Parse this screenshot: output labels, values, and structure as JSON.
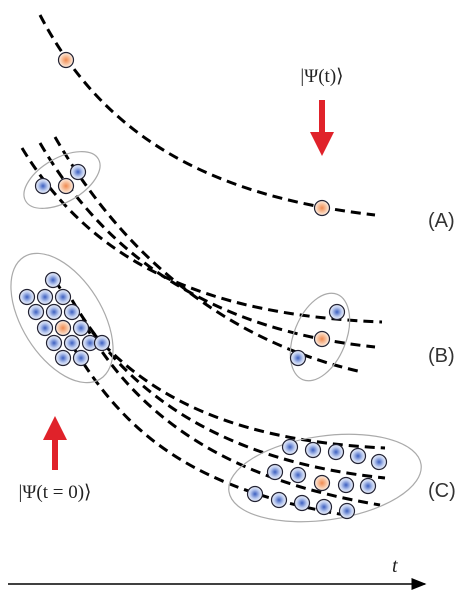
{
  "labels": {
    "psi_t": "|Ψ(t)⟩",
    "psi_0": "|Ψ(t = 0)⟩",
    "a": "(A)",
    "b": "(B)",
    "c": "(C)",
    "time": "t"
  }
}
